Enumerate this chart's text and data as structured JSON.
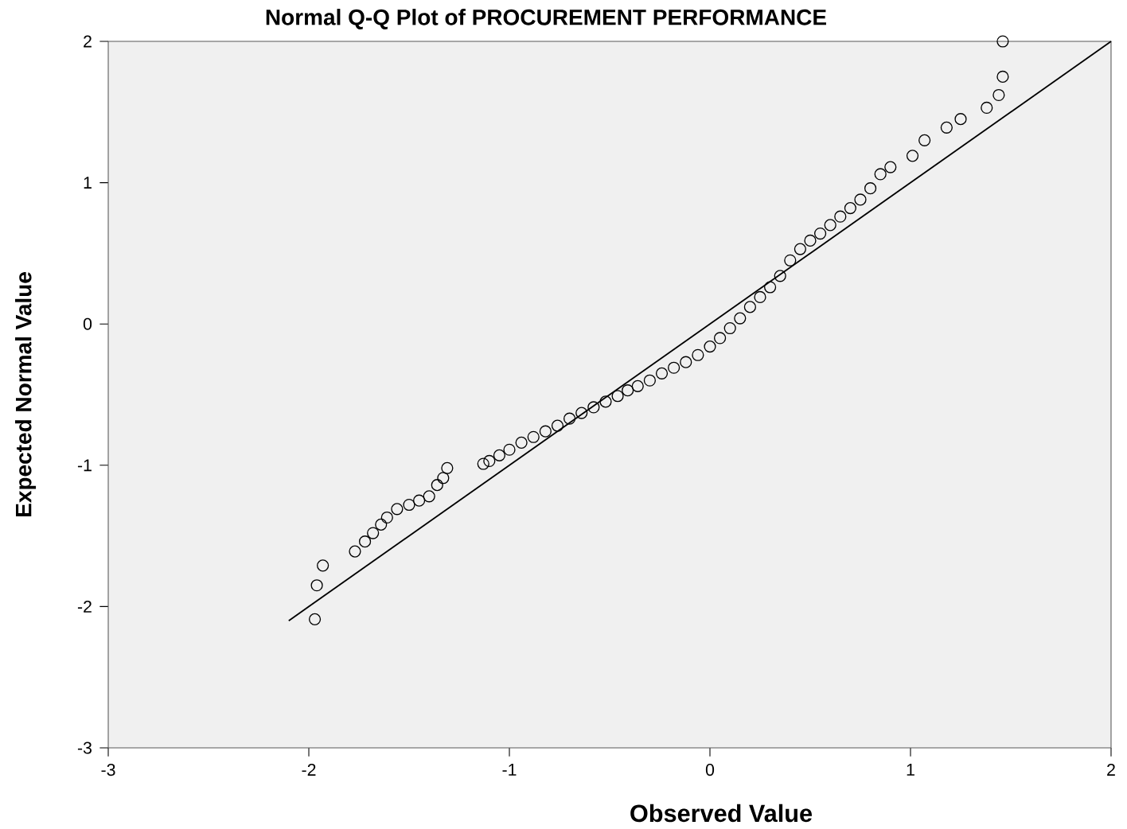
{
  "chart_data": {
    "type": "scatter",
    "title": "Normal Q-Q Plot of PROCUREMENT  PERFORMANCE",
    "xlabel": "Observed Value",
    "ylabel": "Expected Normal Value",
    "xlim": [
      -3,
      2
    ],
    "ylim": [
      -3,
      2
    ],
    "xticks": [
      -3,
      -2,
      -1,
      0,
      1,
      2
    ],
    "yticks": [
      -3,
      -2,
      -1,
      0,
      1,
      2
    ],
    "grid": false,
    "marker": "circle",
    "series": [
      {
        "color": "#000000",
        "x": [
          -1.97,
          -1.96,
          -1.93,
          -1.77,
          -1.72,
          -1.68,
          -1.64,
          -1.61,
          -1.56,
          -1.5,
          -1.45,
          -1.4,
          -1.36,
          -1.33,
          -1.31,
          -1.13,
          -1.1,
          -1.05,
          -1.0,
          -0.94,
          -0.88,
          -0.82,
          -0.76,
          -0.7,
          -0.64,
          -0.58,
          -0.52,
          -0.46,
          -0.41,
          -0.36,
          -0.3,
          -0.24,
          -0.18,
          -0.12,
          -0.06,
          0.0,
          0.05,
          0.1,
          0.15,
          0.2,
          0.25,
          0.3,
          0.35,
          0.4,
          0.45,
          0.5,
          0.55,
          0.6,
          0.65,
          0.7,
          0.75,
          0.8,
          0.85,
          0.9,
          1.01,
          1.07,
          1.18,
          1.25,
          1.38,
          1.44,
          1.46,
          1.46
        ],
        "values": [
          -2.09,
          -1.85,
          -1.71,
          -1.61,
          -1.54,
          -1.48,
          -1.42,
          -1.37,
          -1.31,
          -1.28,
          -1.25,
          -1.22,
          -1.14,
          -1.09,
          -1.02,
          -0.99,
          -0.97,
          -0.93,
          -0.89,
          -0.84,
          -0.8,
          -0.76,
          -0.72,
          -0.67,
          -0.63,
          -0.59,
          -0.55,
          -0.51,
          -0.47,
          -0.44,
          -0.4,
          -0.35,
          -0.31,
          -0.27,
          -0.22,
          -0.16,
          -0.1,
          -0.03,
          0.04,
          0.12,
          0.19,
          0.26,
          0.34,
          0.45,
          0.53,
          0.59,
          0.64,
          0.7,
          0.76,
          0.82,
          0.88,
          0.96,
          1.06,
          1.11,
          1.19,
          1.3,
          1.39,
          1.45,
          1.53,
          1.62,
          1.75,
          2.0
        ]
      },
      {
        "type": "line",
        "color": "#000000",
        "marker": "none",
        "line_style": "solid",
        "x": [
          -2.1,
          2
        ],
        "values": [
          -2.1,
          2
        ]
      }
    ]
  }
}
